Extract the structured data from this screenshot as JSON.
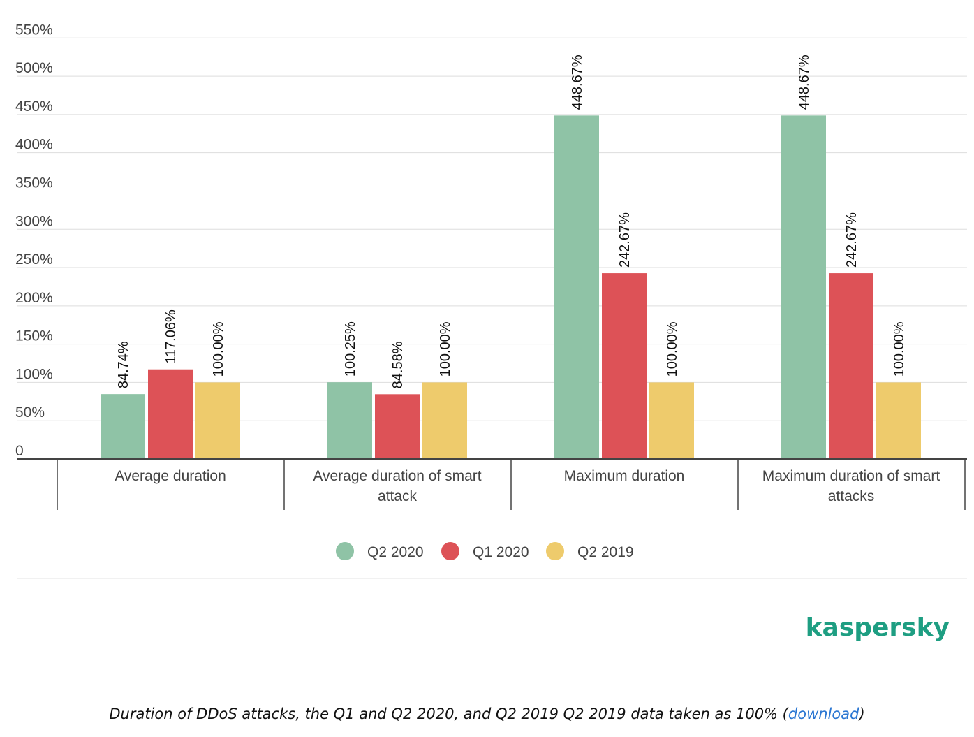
{
  "chart_data": {
    "type": "bar",
    "categories": [
      [
        "Average duration"
      ],
      [
        "Average duration of smart",
        "attack"
      ],
      [
        "Maximum duration"
      ],
      [
        "Maximum duration of smart",
        "attacks"
      ]
    ],
    "series": [
      {
        "name": "Q2 2020",
        "color": "#8fc3a6",
        "values": [
          84.74,
          100.25,
          448.67,
          448.67
        ],
        "labels": [
          "84.74%",
          "100.25%",
          "448.67%",
          "448.67%"
        ]
      },
      {
        "name": "Q1 2020",
        "color": "#dd5257",
        "values": [
          117.06,
          84.58,
          242.67,
          242.67
        ],
        "labels": [
          "117.06%",
          "84.58%",
          "242.67%",
          "242.67%"
        ]
      },
      {
        "name": "Q2 2019",
        "color": "#eecb6c",
        "values": [
          100.0,
          100.0,
          100.0,
          100.0
        ],
        "labels": [
          "100.00%",
          "100.00%",
          "100.00%",
          "100.00%"
        ]
      }
    ],
    "yticks": [
      "0",
      "50%",
      "100%",
      "150%",
      "200%",
      "250%",
      "300%",
      "350%",
      "400%",
      "450%",
      "500%",
      "550%"
    ],
    "ylim": [
      0,
      550
    ],
    "grid": true,
    "legend_position": "bottom-center"
  },
  "brand": {
    "logo_text": "kaspersky",
    "color": "#1e9e82"
  },
  "caption": {
    "text": "Duration of DDoS attacks, the Q1 and Q2 2020, and Q2 2019 Q2 2019 data taken as 100% (",
    "link": "download",
    "close": ")"
  }
}
